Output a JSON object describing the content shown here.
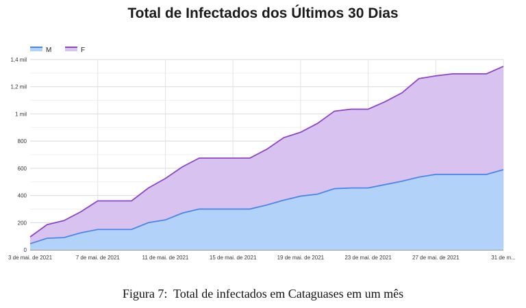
{
  "chart_data": {
    "type": "area",
    "stacked": true,
    "title": "Total de Infectados dos Últimos 30 Dias",
    "xlabel": "",
    "ylabel": "",
    "legend_position": "top-left",
    "grid": true,
    "ylim": [
      0,
      1400
    ],
    "y_ticks": [
      0,
      200,
      400,
      600,
      800,
      1000,
      1200,
      1400
    ],
    "y_tick_labels": [
      "0",
      "200",
      "400",
      "600",
      "800",
      "1 mil",
      "1,2 mil",
      "1,4 mil"
    ],
    "x_ticks": [
      0,
      4,
      8,
      12,
      16,
      20,
      24,
      28
    ],
    "x_tick_labels": [
      "3 de mai. de 2021",
      "7 de mai. de 2021",
      "11 de mai. de 2021",
      "15 de mai. de 2021",
      "19 de mai. de 2021",
      "23 de mai. de 2021",
      "27 de mai. de 2021",
      "31 de m..."
    ],
    "series": [
      {
        "name": "M",
        "color": "#4a86e8",
        "fill": "#b2d2fa",
        "values": [
          45,
          85,
          90,
          125,
          150,
          150,
          150,
          200,
          220,
          270,
          300,
          300,
          300,
          300,
          330,
          365,
          395,
          410,
          450,
          455,
          455,
          480,
          505,
          535,
          555,
          555,
          555,
          555,
          590
        ]
      },
      {
        "name": "F",
        "color": "#8e44c7",
        "fill": "#d8c3f0",
        "values": [
          50,
          100,
          125,
          155,
          210,
          210,
          210,
          255,
          305,
          340,
          375,
          375,
          375,
          375,
          410,
          460,
          470,
          520,
          570,
          580,
          580,
          610,
          650,
          725,
          725,
          740,
          740,
          740,
          760
        ]
      }
    ]
  },
  "caption": "Figura 7:  Total de infectados em Cataguases em um mês"
}
